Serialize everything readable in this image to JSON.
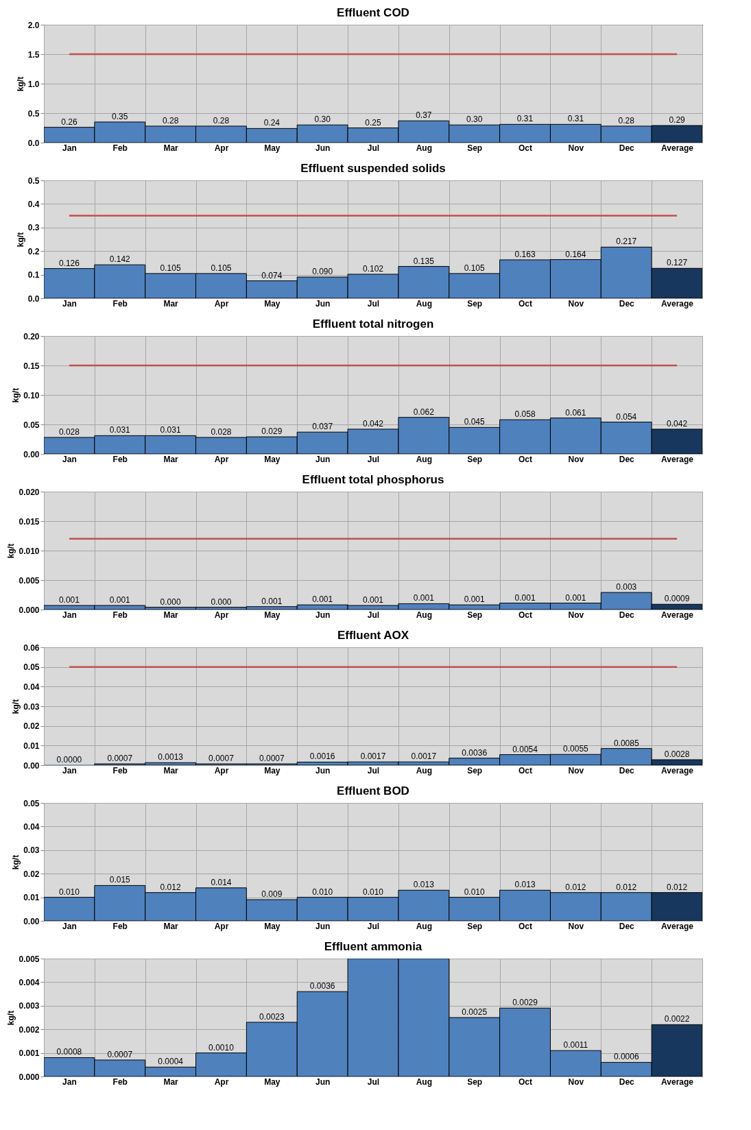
{
  "chart_data": [
    {
      "type": "bar",
      "title": "Effluent COD",
      "ylabel": "kg/t",
      "categories": [
        "Jan",
        "Feb",
        "Mar",
        "Apr",
        "May",
        "Jun",
        "Jul",
        "Aug",
        "Sep",
        "Oct",
        "Nov",
        "Dec",
        "Average"
      ],
      "values": [
        0.26,
        0.35,
        0.28,
        0.28,
        0.24,
        0.3,
        0.25,
        0.37,
        0.3,
        0.31,
        0.31,
        0.28,
        0.29
      ],
      "value_labels": [
        "0.26",
        "0.35",
        "0.28",
        "0.28",
        "0.24",
        "0.30",
        "0.25",
        "0.37",
        "0.30",
        "0.31",
        "0.31",
        "0.28",
        "0.29"
      ],
      "colors": [
        "#4f81bd",
        "#4f81bd",
        "#4f81bd",
        "#4f81bd",
        "#4f81bd",
        "#4f81bd",
        "#4f81bd",
        "#4f81bd",
        "#4f81bd",
        "#4f81bd",
        "#4f81bd",
        "#4f81bd",
        "#17375e"
      ],
      "ylim": [
        0,
        2
      ],
      "yticks": [
        {
          "value": 0,
          "label": "0.0"
        },
        {
          "value": 0.5,
          "label": "0.5"
        },
        {
          "value": 1,
          "label": "1.0"
        },
        {
          "value": 1.5,
          "label": "1.5"
        },
        {
          "value": 2,
          "label": "2.0"
        }
      ],
      "grid": true,
      "ref_lines": [
        {
          "axis": "y",
          "value": 1.5,
          "color": "#c0504d"
        }
      ]
    },
    {
      "type": "bar",
      "title": "Effluent suspended solids",
      "ylabel": "kg/t",
      "categories": [
        "Jan",
        "Feb",
        "Mar",
        "Apr",
        "May",
        "Jun",
        "Jul",
        "Aug",
        "Sep",
        "Oct",
        "Nov",
        "Dec",
        "Average"
      ],
      "values": [
        0.126,
        0.142,
        0.105,
        0.105,
        0.074,
        0.09,
        0.102,
        0.135,
        0.105,
        0.163,
        0.164,
        0.217,
        0.127
      ],
      "value_labels": [
        "0.126",
        "0.142",
        "0.105",
        "0.105",
        "0.074",
        "0.090",
        "0.102",
        "0.135",
        "0.105",
        "0.163",
        "0.164",
        "0.217",
        "0.127"
      ],
      "colors": [
        "#4f81bd",
        "#4f81bd",
        "#4f81bd",
        "#4f81bd",
        "#4f81bd",
        "#4f81bd",
        "#4f81bd",
        "#4f81bd",
        "#4f81bd",
        "#4f81bd",
        "#4f81bd",
        "#4f81bd",
        "#17375e"
      ],
      "ylim": [
        0,
        0.5
      ],
      "yticks": [
        {
          "value": 0,
          "label": "0.0"
        },
        {
          "value": 0.1,
          "label": "0.1"
        },
        {
          "value": 0.2,
          "label": "0.2"
        },
        {
          "value": 0.3,
          "label": "0.3"
        },
        {
          "value": 0.4,
          "label": "0.4"
        },
        {
          "value": 0.5,
          "label": "0.5"
        }
      ],
      "grid": true,
      "ref_lines": [
        {
          "axis": "y",
          "value": 0.35,
          "color": "#c0504d"
        }
      ]
    },
    {
      "type": "bar",
      "title": "Effluent total nitrogen",
      "ylabel": "kg/t",
      "categories": [
        "Jan",
        "Feb",
        "Mar",
        "Apr",
        "May",
        "Jun",
        "Jul",
        "Aug",
        "Sep",
        "Oct",
        "Nov",
        "Dec",
        "Average"
      ],
      "values": [
        0.028,
        0.031,
        0.031,
        0.028,
        0.029,
        0.037,
        0.042,
        0.062,
        0.045,
        0.058,
        0.061,
        0.054,
        0.042
      ],
      "value_labels": [
        "0.028",
        "0.031",
        "0.031",
        "0.028",
        "0.029",
        "0.037",
        "0.042",
        "0.062",
        "0.045",
        "0.058",
        "0.061",
        "0.054",
        "0.042"
      ],
      "colors": [
        "#4f81bd",
        "#4f81bd",
        "#4f81bd",
        "#4f81bd",
        "#4f81bd",
        "#4f81bd",
        "#4f81bd",
        "#4f81bd",
        "#4f81bd",
        "#4f81bd",
        "#4f81bd",
        "#4f81bd",
        "#17375e"
      ],
      "ylim": [
        0,
        0.2
      ],
      "yticks": [
        {
          "value": 0,
          "label": "0.00"
        },
        {
          "value": 0.05,
          "label": "0.05"
        },
        {
          "value": 0.1,
          "label": "0.10"
        },
        {
          "value": 0.15,
          "label": "0.15"
        },
        {
          "value": 0.2,
          "label": "0.20"
        }
      ],
      "grid": true,
      "ref_lines": [
        {
          "axis": "y",
          "value": 0.15,
          "color": "#c0504d"
        }
      ]
    },
    {
      "type": "bar",
      "title": "Effluent total phosphorus",
      "ylabel": "kg/t",
      "categories": [
        "Jan",
        "Feb",
        "Mar",
        "Apr",
        "May",
        "Jun",
        "Jul",
        "Aug",
        "Sep",
        "Oct",
        "Nov",
        "Dec",
        "Average"
      ],
      "values": [
        0.0007,
        0.0007,
        0.0004,
        0.0004,
        0.0005,
        0.0008,
        0.0007,
        0.001,
        0.0008,
        0.0011,
        0.0011,
        0.0029,
        0.0009
      ],
      "value_labels": [
        "0.001",
        "0.001",
        "0.000",
        "0.000",
        "0.001",
        "0.001",
        "0.001",
        "0.001",
        "0.001",
        "0.001",
        "0.001",
        "0.003",
        "0.0009"
      ],
      "colors": [
        "#4f81bd",
        "#4f81bd",
        "#4f81bd",
        "#4f81bd",
        "#4f81bd",
        "#4f81bd",
        "#4f81bd",
        "#4f81bd",
        "#4f81bd",
        "#4f81bd",
        "#4f81bd",
        "#4f81bd",
        "#17375e"
      ],
      "ylim": [
        0,
        0.02
      ],
      "yticks": [
        {
          "value": 0,
          "label": "0.000"
        },
        {
          "value": 0.005,
          "label": "0.005"
        },
        {
          "value": 0.01,
          "label": "0.010"
        },
        {
          "value": 0.015,
          "label": "0.015"
        },
        {
          "value": 0.02,
          "label": "0.020"
        }
      ],
      "grid": true,
      "ref_lines": [
        {
          "axis": "y",
          "value": 0.012,
          "color": "#c0504d"
        }
      ]
    },
    {
      "type": "bar",
      "title": "Effluent AOX",
      "ylabel": "kg/t",
      "categories": [
        "Jan",
        "Feb",
        "Mar",
        "Apr",
        "May",
        "Jun",
        "Jul",
        "Aug",
        "Sep",
        "Oct",
        "Nov",
        "Dec",
        "Average"
      ],
      "values": [
        0,
        0.0007,
        0.0013,
        0.0007,
        0.0007,
        0.0016,
        0.0017,
        0.0017,
        0.0036,
        0.0054,
        0.0055,
        0.0085,
        0.0028
      ],
      "value_labels": [
        "0.0000",
        "0.0007",
        "0.0013",
        "0.0007",
        "0.0007",
        "0.0016",
        "0.0017",
        "0.0017",
        "0.0036",
        "0.0054",
        "0.0055",
        "0.0085",
        "0.0028"
      ],
      "colors": [
        "#4f81bd",
        "#4f81bd",
        "#4f81bd",
        "#4f81bd",
        "#4f81bd",
        "#4f81bd",
        "#4f81bd",
        "#4f81bd",
        "#4f81bd",
        "#4f81bd",
        "#4f81bd",
        "#4f81bd",
        "#17375e"
      ],
      "ylim": [
        0,
        0.06
      ],
      "yticks": [
        {
          "value": 0,
          "label": "0.00"
        },
        {
          "value": 0.01,
          "label": "0.01"
        },
        {
          "value": 0.02,
          "label": "0.02"
        },
        {
          "value": 0.03,
          "label": "0.03"
        },
        {
          "value": 0.04,
          "label": "0.04"
        },
        {
          "value": 0.05,
          "label": "0.05"
        },
        {
          "value": 0.06,
          "label": "0.06"
        }
      ],
      "grid": true,
      "ref_lines": [
        {
          "axis": "y",
          "value": 0.05,
          "color": "#c0504d"
        }
      ]
    },
    {
      "type": "bar",
      "title": "Effluent BOD",
      "ylabel": "kg/t",
      "categories": [
        "Jan",
        "Feb",
        "Mar",
        "Apr",
        "May",
        "Jun",
        "Jul",
        "Aug",
        "Sep",
        "Oct",
        "Nov",
        "Dec",
        "Average"
      ],
      "values": [
        0.01,
        0.015,
        0.012,
        0.014,
        0.009,
        0.01,
        0.01,
        0.013,
        0.01,
        0.013,
        0.012,
        0.012,
        0.012
      ],
      "value_labels": [
        "0.010",
        "0.015",
        "0.012",
        "0.014",
        "0.009",
        "0.010",
        "0.010",
        "0.013",
        "0.010",
        "0.013",
        "0.012",
        "0.012",
        "0.012"
      ],
      "colors": [
        "#4f81bd",
        "#4f81bd",
        "#4f81bd",
        "#4f81bd",
        "#4f81bd",
        "#4f81bd",
        "#4f81bd",
        "#4f81bd",
        "#4f81bd",
        "#4f81bd",
        "#4f81bd",
        "#4f81bd",
        "#17375e"
      ],
      "ylim": [
        0,
        0.05
      ],
      "yticks": [
        {
          "value": 0,
          "label": "0.00"
        },
        {
          "value": 0.01,
          "label": "0.01"
        },
        {
          "value": 0.02,
          "label": "0.02"
        },
        {
          "value": 0.03,
          "label": "0.03"
        },
        {
          "value": 0.04,
          "label": "0.04"
        },
        {
          "value": 0.05,
          "label": "0.05"
        }
      ],
      "grid": true
    },
    {
      "type": "bar",
      "title": "Effluent ammonia",
      "ylabel": "kg/t",
      "categories": [
        "Jan",
        "Feb",
        "Mar",
        "Apr",
        "May",
        "Jun",
        "Jul",
        "Aug",
        "Sep",
        "Oct",
        "Nov",
        "Dec",
        "Average"
      ],
      "values": [
        0.0008,
        0.0007,
        0.0004,
        0.001,
        0.0023,
        0.0036,
        0.005,
        0.005,
        0.0025,
        0.0029,
        0.0011,
        0.0006,
        0.0022
      ],
      "value_labels": [
        "0.0008",
        "0.0007",
        "0.0004",
        "0.0010",
        "0.0023",
        "0.0036",
        null,
        null,
        "0.0025",
        "0.0029",
        "0.0011",
        "0.0006",
        "0.0022"
      ],
      "colors": [
        "#4f81bd",
        "#4f81bd",
        "#4f81bd",
        "#4f81bd",
        "#4f81bd",
        "#4f81bd",
        "#4f81bd",
        "#4f81bd",
        "#4f81bd",
        "#4f81bd",
        "#4f81bd",
        "#4f81bd",
        "#17375e"
      ],
      "ylim": [
        0,
        0.005
      ],
      "yticks": [
        {
          "value": 0,
          "label": "0.000"
        },
        {
          "value": 0.001,
          "label": "0.001"
        },
        {
          "value": 0.002,
          "label": "0.002"
        },
        {
          "value": 0.003,
          "label": "0.003"
        },
        {
          "value": 0.004,
          "label": "0.004"
        },
        {
          "value": 0.005,
          "label": "0.005"
        }
      ],
      "grid": true
    }
  ]
}
